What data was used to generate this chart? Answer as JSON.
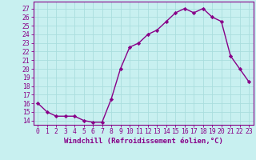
{
  "x": [
    0,
    1,
    2,
    3,
    4,
    5,
    6,
    7,
    8,
    9,
    10,
    11,
    12,
    13,
    14,
    15,
    16,
    17,
    18,
    19,
    20,
    21,
    22,
    23
  ],
  "y": [
    16.0,
    15.0,
    14.5,
    14.5,
    14.5,
    14.0,
    13.8,
    13.8,
    16.5,
    20.0,
    22.5,
    23.0,
    24.0,
    24.5,
    25.5,
    26.5,
    27.0,
    26.5,
    27.0,
    26.0,
    25.5,
    21.5,
    20.0,
    18.5
  ],
  "line_color": "#880088",
  "marker": "D",
  "markersize": 2.2,
  "linewidth": 1.0,
  "bg_color": "#c8f0f0",
  "grid_color": "#aadddd",
  "xlabel": "Windchill (Refroidissement éolien,°C)",
  "xlabel_fontsize": 6.5,
  "tick_color": "#880088",
  "tick_fontsize": 5.8,
  "ylim": [
    13.5,
    27.8
  ],
  "xlim": [
    -0.5,
    23.5
  ],
  "yticks": [
    14,
    15,
    16,
    17,
    18,
    19,
    20,
    21,
    22,
    23,
    24,
    25,
    26,
    27
  ]
}
